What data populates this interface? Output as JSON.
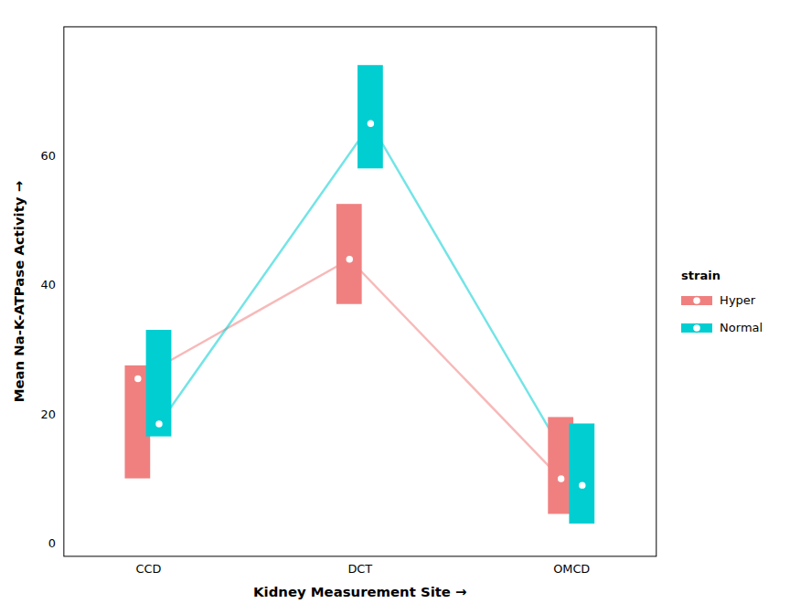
{
  "chart_data": {
    "type": "interval",
    "xlabel": "Kidney Measurement Site",
    "ylabel": "Mean Na-K-ATPase Activity",
    "categories": [
      "CCD",
      "DCT",
      "OMCD"
    ],
    "series": [
      {
        "name": "Hyper",
        "color": "#F08080",
        "values": [
          25.5,
          44.0,
          10.0
        ],
        "ci_low": [
          10.0,
          37.0,
          4.5
        ],
        "ci_high": [
          27.5,
          52.5,
          19.5
        ]
      },
      {
        "name": "Normal",
        "color": "#00CED1",
        "values": [
          18.5,
          65.0,
          9.0
        ],
        "ci_low": [
          16.5,
          58.0,
          3.0
        ],
        "ci_high": [
          33.0,
          74.0,
          18.5
        ]
      }
    ],
    "ylim": [
      -2,
      80
    ],
    "yticks": [
      0,
      20,
      40,
      60
    ],
    "grid": false,
    "legend": "right",
    "legend_title": "strain"
  }
}
